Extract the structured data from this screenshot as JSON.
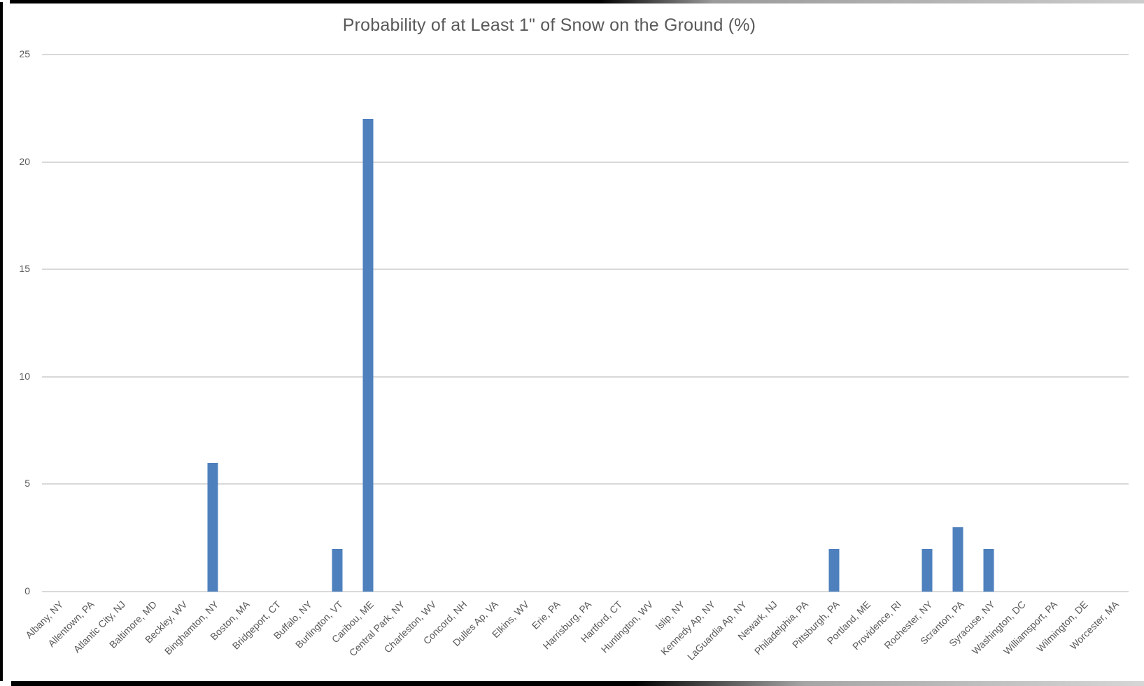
{
  "chart_data": {
    "type": "bar",
    "title": "Probability of at Least 1\" of Snow on the Ground (%)",
    "categories": [
      "Albany, NY",
      "Allentown, PA",
      "Atlantic City, NJ",
      "Baltimore, MD",
      "Beckley, WV",
      "Binghamton, NY",
      "Boston, MA",
      "Bridgeport, CT",
      "Buffalo, NY",
      "Burlington, VT",
      "Caribou, ME",
      "Central Park, NY",
      "Charleston, WV",
      "Concord, NH",
      "Dulles Ap, VA",
      "Elkins, WV",
      "Erie, PA",
      "Harrisburg, PA",
      "Hartford, CT",
      "Huntington, WV",
      "Islip, NY",
      "Kennedy Ap, NY",
      "LaGuardia Ap, NY",
      "Newark, NJ",
      "Philadelphia, PA",
      "Pittsburgh, PA",
      "Portland, ME",
      "Providence, RI",
      "Rochester, NY",
      "Scranton, PA",
      "Syracuse, NY",
      "Washington, DC",
      "Williamsport, PA",
      "Wilmington, DE",
      "Worcester, MA"
    ],
    "values": [
      0,
      0,
      0,
      0,
      0,
      6,
      0,
      0,
      0,
      2,
      22,
      0,
      0,
      0,
      0,
      0,
      0,
      0,
      0,
      0,
      0,
      0,
      0,
      0,
      0,
      2,
      0,
      0,
      2,
      3,
      2,
      0,
      0,
      0,
      0
    ],
    "xlabel": "",
    "ylabel": "",
    "ylim": [
      0,
      25
    ],
    "yticks": [
      0,
      5,
      10,
      15,
      20,
      25
    ],
    "grid": "horizontal",
    "legend": "none",
    "x_tick_rotation_deg": 45,
    "colors": {
      "bar": "#4E80BD",
      "gridline": "#D9D9D9",
      "text": "#595959",
      "background": "#FFFFFF",
      "edge": "#000000"
    }
  }
}
